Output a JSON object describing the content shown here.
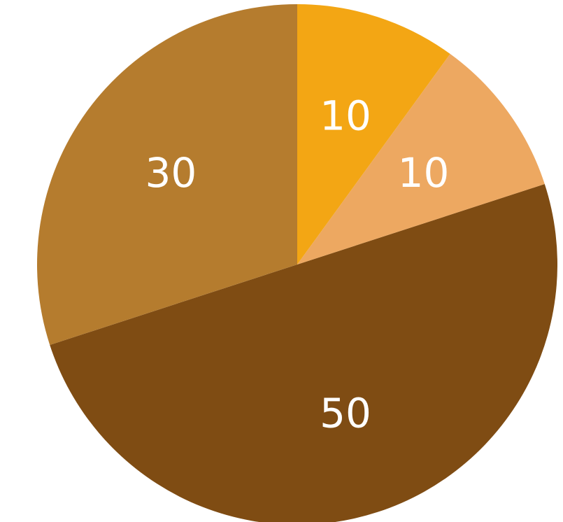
{
  "chart_data": {
    "type": "pie",
    "title": "",
    "slices": [
      {
        "label": "50",
        "value": 50,
        "color": "#7F4C13"
      },
      {
        "label": "30",
        "value": 30,
        "color": "#B57C2E"
      },
      {
        "label": "10",
        "value": 10,
        "color": "#F3A614"
      },
      {
        "label": "10",
        "value": 10,
        "color": "#EDA861"
      }
    ],
    "start_angle_deg": -18,
    "direction": "clockwise",
    "legend": "none",
    "data_labels": "inside"
  }
}
